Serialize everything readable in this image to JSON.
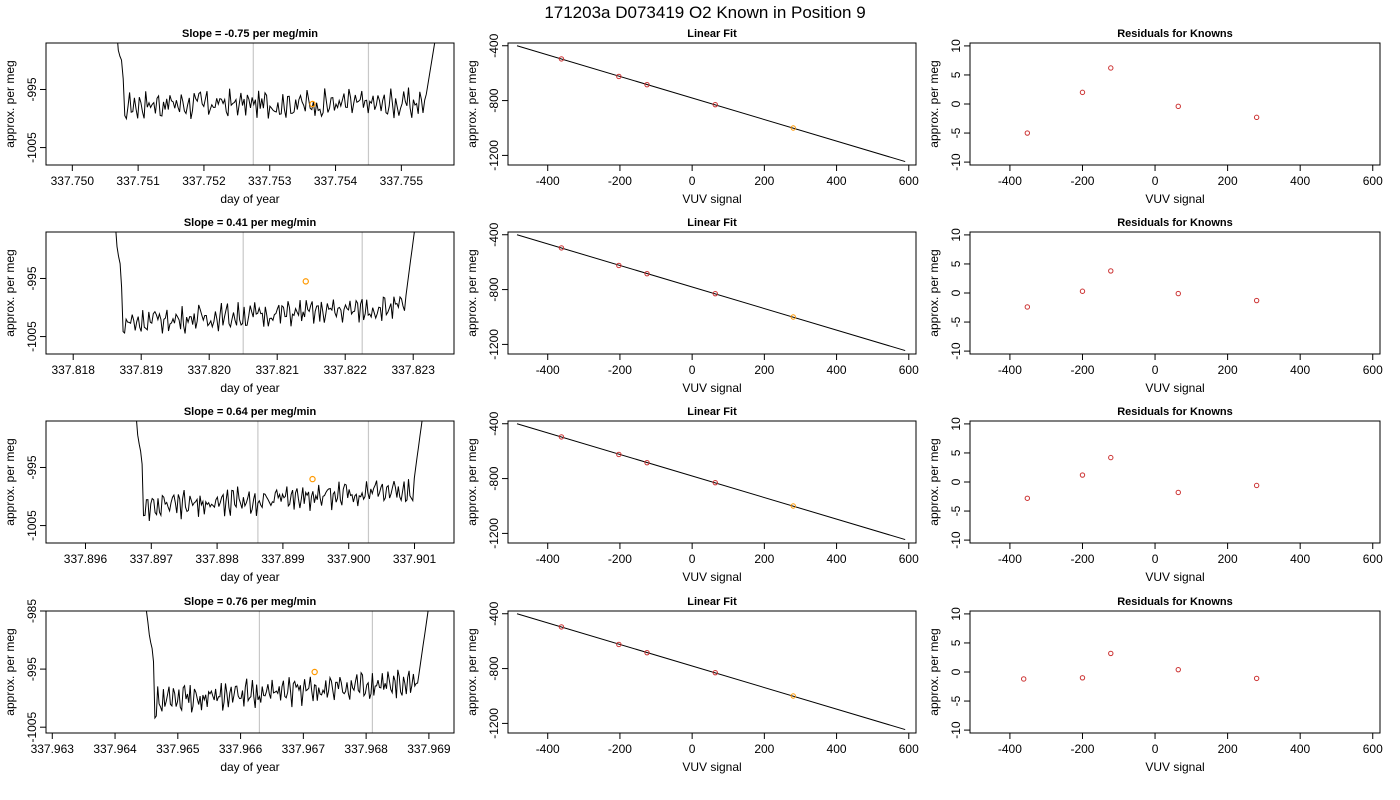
{
  "figure": {
    "title": "171203a     D073419   O2 Known in Position  9"
  },
  "chart_data": [
    {
      "type": "line",
      "row": 0,
      "col": 0,
      "title": "Slope =  -0.75  per meg/min",
      "xlabel": "day of year",
      "ylabel": "approx. per meg",
      "xlim": [
        337.7496,
        337.7558
      ],
      "ylim": [
        -1008,
        -987
      ],
      "xticks": [
        337.75,
        337.751,
        337.752,
        337.753,
        337.754,
        337.755
      ],
      "xtick_labels": [
        "337.750",
        "337.751",
        "337.752",
        "337.753",
        "337.754",
        "337.755"
      ],
      "yticks": [
        -1005,
        -995
      ],
      "ytick_labels": [
        "-1005",
        "-995"
      ],
      "vlines": [
        337.75275,
        337.7545
      ],
      "marker": {
        "x": 337.75365,
        "y": -997.5
      },
      "trace": {
        "x0": 337.75065,
        "x1": 337.75555,
        "ystart": -984,
        "yend": -984,
        "base": -997.5,
        "slope": 0.0,
        "noise": 1.8
      }
    },
    {
      "type": "scatter",
      "row": 0,
      "col": 1,
      "title": "Linear Fit",
      "xlabel": "VUV signal",
      "ylabel": "approx. per meg",
      "xlim": [
        -510,
        620
      ],
      "ylim": [
        -1270,
        -380
      ],
      "xticks": [
        -400,
        -200,
        0,
        200,
        400,
        600
      ],
      "xtick_labels": [
        "-400",
        "-200",
        "0",
        "200",
        "400",
        "600"
      ],
      "yticks": [
        -1200,
        -800,
        -400
      ],
      "ytick_labels": [
        "-1200",
        "-800",
        "-400"
      ],
      "line": {
        "x": [
          -485,
          590
        ],
        "y": [
          -400,
          -1245
        ]
      },
      "points": [
        {
          "x": -362,
          "y": -496
        },
        {
          "x": -203,
          "y": -624
        },
        {
          "x": -125,
          "y": -684
        },
        {
          "x": 64,
          "y": -830
        },
        {
          "x": 280,
          "y": -1000,
          "highlight": true
        }
      ]
    },
    {
      "type": "scatter",
      "row": 0,
      "col": 2,
      "title": "Residuals for Knowns",
      "xlabel": "VUV signal",
      "ylabel": "",
      "xlim": [
        -510,
        620
      ],
      "ylim": [
        -10.5,
        10.5
      ],
      "xticks": [
        -400,
        -200,
        0,
        200,
        400,
        600
      ],
      "xtick_labels": [
        "-400",
        "-200",
        "0",
        "200",
        "400",
        "600"
      ],
      "yticks": [
        -10,
        -5,
        0,
        5,
        10
      ],
      "ytick_labels": [
        "-10",
        "-5",
        "0",
        "5",
        "10"
      ],
      "points": [
        {
          "x": -352,
          "y": -5.0
        },
        {
          "x": -200,
          "y": 2.0
        },
        {
          "x": -122,
          "y": 6.2
        },
        {
          "x": 64,
          "y": -0.4
        },
        {
          "x": 280,
          "y": -2.3
        }
      ]
    },
    {
      "type": "line",
      "row": 1,
      "col": 0,
      "title": "Slope =  0.41  per meg/min",
      "xlabel": "day of year",
      "ylabel": "approx. per meg",
      "xlim": [
        337.8176,
        337.8236
      ],
      "ylim": [
        -1008,
        -987
      ],
      "xticks": [
        337.818,
        337.819,
        337.82,
        337.821,
        337.822,
        337.823
      ],
      "xtick_labels": [
        "337.818",
        "337.819",
        "337.820",
        "337.821",
        "337.822",
        "337.823"
      ],
      "yticks": [
        -1005,
        -995
      ],
      "ytick_labels": [
        "-1005",
        "-995"
      ],
      "vlines": [
        337.8205,
        337.82225
      ],
      "marker": {
        "x": 337.82142,
        "y": -995.5
      },
      "trace": {
        "x0": 337.8186,
        "x1": 337.82305,
        "ystart": -984,
        "yend": -984,
        "base": -1002.5,
        "slope": 2.6,
        "noise": 1.6
      }
    },
    {
      "type": "scatter",
      "row": 1,
      "col": 1,
      "title": "Linear Fit",
      "xlabel": "VUV signal",
      "ylabel": "approx. per meg",
      "xlim": [
        -510,
        620
      ],
      "ylim": [
        -1270,
        -380
      ],
      "xticks": [
        -400,
        -200,
        0,
        200,
        400,
        600
      ],
      "xtick_labels": [
        "-400",
        "-200",
        "0",
        "200",
        "400",
        "600"
      ],
      "yticks": [
        -1200,
        -800,
        -400
      ],
      "ytick_labels": [
        "-1200",
        "-800",
        "-400"
      ],
      "line": {
        "x": [
          -485,
          590
        ],
        "y": [
          -400,
          -1245
        ]
      },
      "points": [
        {
          "x": -362,
          "y": -496
        },
        {
          "x": -203,
          "y": -624
        },
        {
          "x": -125,
          "y": -684
        },
        {
          "x": 64,
          "y": -830
        },
        {
          "x": 280,
          "y": -1000,
          "highlight": true
        }
      ]
    },
    {
      "type": "scatter",
      "row": 1,
      "col": 2,
      "title": "Residuals for Knowns",
      "xlabel": "VUV signal",
      "ylabel": "",
      "xlim": [
        -510,
        620
      ],
      "ylim": [
        -10.5,
        10.5
      ],
      "xticks": [
        -400,
        -200,
        0,
        200,
        400,
        600
      ],
      "xtick_labels": [
        "-400",
        "-200",
        "0",
        "200",
        "400",
        "600"
      ],
      "yticks": [
        -10,
        -5,
        0,
        5,
        10
      ],
      "ytick_labels": [
        "-10",
        "-5",
        "0",
        "5",
        "10"
      ],
      "points": [
        {
          "x": -352,
          "y": -2.4
        },
        {
          "x": -200,
          "y": 0.3
        },
        {
          "x": -122,
          "y": 3.8
        },
        {
          "x": 64,
          "y": -0.1
        },
        {
          "x": 280,
          "y": -1.3
        }
      ]
    },
    {
      "type": "line",
      "row": 2,
      "col": 0,
      "title": "Slope =  0.64  per meg/min",
      "xlabel": "day of year",
      "ylabel": "approx. per meg",
      "xlim": [
        337.8954,
        337.9016
      ],
      "ylim": [
        -1008,
        -987
      ],
      "xticks": [
        337.896,
        337.897,
        337.898,
        337.899,
        337.9,
        337.901
      ],
      "xtick_labels": [
        "337.896",
        "337.897",
        "337.898",
        "337.899",
        "337.900",
        "337.901"
      ],
      "yticks": [
        -1005,
        -995
      ],
      "ytick_labels": [
        "-1005",
        "-995"
      ],
      "vlines": [
        337.89862,
        337.9003
      ],
      "marker": {
        "x": 337.89945,
        "y": -997.0
      },
      "trace": {
        "x0": 337.89675,
        "x1": 337.90115,
        "ystart": -984,
        "yend": -984,
        "base": -1002.0,
        "slope": 3.3,
        "noise": 1.7
      }
    },
    {
      "type": "scatter",
      "row": 2,
      "col": 1,
      "title": "Linear Fit",
      "xlabel": "VUV signal",
      "ylabel": "approx. per meg",
      "xlim": [
        -510,
        620
      ],
      "ylim": [
        -1270,
        -380
      ],
      "xticks": [
        -400,
        -200,
        0,
        200,
        400,
        600
      ],
      "xtick_labels": [
        "-400",
        "-200",
        "0",
        "200",
        "400",
        "600"
      ],
      "yticks": [
        -1200,
        -800,
        -400
      ],
      "ytick_labels": [
        "-1200",
        "-800",
        "-400"
      ],
      "line": {
        "x": [
          -485,
          590
        ],
        "y": [
          -400,
          -1245
        ]
      },
      "points": [
        {
          "x": -362,
          "y": -496
        },
        {
          "x": -203,
          "y": -624
        },
        {
          "x": -125,
          "y": -684
        },
        {
          "x": 64,
          "y": -830
        },
        {
          "x": 280,
          "y": -1000,
          "highlight": true
        }
      ]
    },
    {
      "type": "scatter",
      "row": 2,
      "col": 2,
      "title": "Residuals for Knowns",
      "xlabel": "VUV signal",
      "ylabel": "",
      "xlim": [
        -510,
        620
      ],
      "ylim": [
        -10.5,
        10.5
      ],
      "xticks": [
        -400,
        -200,
        0,
        200,
        400,
        600
      ],
      "xtick_labels": [
        "-400",
        "-200",
        "0",
        "200",
        "400",
        "600"
      ],
      "yticks": [
        -10,
        -5,
        0,
        5,
        10
      ],
      "ytick_labels": [
        "-10",
        "-5",
        "0",
        "5",
        "10"
      ],
      "points": [
        {
          "x": -352,
          "y": -2.8
        },
        {
          "x": -200,
          "y": 1.2
        },
        {
          "x": -122,
          "y": 4.2
        },
        {
          "x": 64,
          "y": -1.8
        },
        {
          "x": 280,
          "y": -0.6
        }
      ]
    },
    {
      "type": "line",
      "row": 3,
      "col": 0,
      "title": "Slope =  0.76  per meg/min",
      "xlabel": "day of year",
      "ylabel": "approx. per meg",
      "xlim": [
        337.9629,
        337.9694
      ],
      "ylim": [
        -1006,
        -985
      ],
      "xticks": [
        337.963,
        337.964,
        337.965,
        337.966,
        337.967,
        337.968,
        337.969
      ],
      "xtick_labels": [
        "337.963",
        "337.964",
        "337.965",
        "337.966",
        "337.967",
        "337.968",
        "337.969"
      ],
      "yticks": [
        -1005,
        -995,
        -985
      ],
      "ytick_labels": [
        "-1005",
        "-995",
        "-985"
      ],
      "vlines": [
        337.9663,
        337.9681
      ],
      "marker": {
        "x": 337.96718,
        "y": -995.5
      },
      "trace": {
        "x0": 337.9645,
        "x1": 337.969,
        "ystart": -984,
        "yend": -984,
        "base": -1000.5,
        "slope": 3.0,
        "noise": 1.8
      }
    },
    {
      "type": "scatter",
      "row": 3,
      "col": 1,
      "title": "Linear Fit",
      "xlabel": "VUV signal",
      "ylabel": "approx. per meg",
      "xlim": [
        -510,
        620
      ],
      "ylim": [
        -1270,
        -380
      ],
      "xticks": [
        -400,
        -200,
        0,
        200,
        400,
        600
      ],
      "xtick_labels": [
        "-400",
        "-200",
        "0",
        "200",
        "400",
        "600"
      ],
      "yticks": [
        -1200,
        -800,
        -400
      ],
      "ytick_labels": [
        "-1200",
        "-800",
        "-400"
      ],
      "line": {
        "x": [
          -485,
          590
        ],
        "y": [
          -400,
          -1245
        ]
      },
      "points": [
        {
          "x": -362,
          "y": -496
        },
        {
          "x": -203,
          "y": -624
        },
        {
          "x": -125,
          "y": -684
        },
        {
          "x": 64,
          "y": -830
        },
        {
          "x": 280,
          "y": -1000,
          "highlight": true
        }
      ]
    },
    {
      "type": "scatter",
      "row": 3,
      "col": 2,
      "title": "Residuals for Knowns",
      "xlabel": "VUV signal",
      "ylabel": "",
      "xlim": [
        -510,
        620
      ],
      "ylim": [
        -10.5,
        10.5
      ],
      "xticks": [
        -400,
        -200,
        0,
        200,
        400,
        600
      ],
      "xtick_labels": [
        "-400",
        "-200",
        "0",
        "200",
        "400",
        "600"
      ],
      "yticks": [
        -10,
        -5,
        0,
        5,
        10
      ],
      "ytick_labels": [
        "-10",
        "-5",
        "0",
        "5",
        "10"
      ],
      "points": [
        {
          "x": -362,
          "y": -1.2
        },
        {
          "x": -200,
          "y": -1.0
        },
        {
          "x": -122,
          "y": 3.2
        },
        {
          "x": 64,
          "y": 0.4
        },
        {
          "x": 280,
          "y": -1.1
        }
      ]
    }
  ],
  "residual_ylabel": "approx. per meg",
  "colors": {
    "point": "#cc3333",
    "highlight": "#ff9900",
    "line": "#000000",
    "vline": "#c8c8c8",
    "axis": "#000000"
  }
}
